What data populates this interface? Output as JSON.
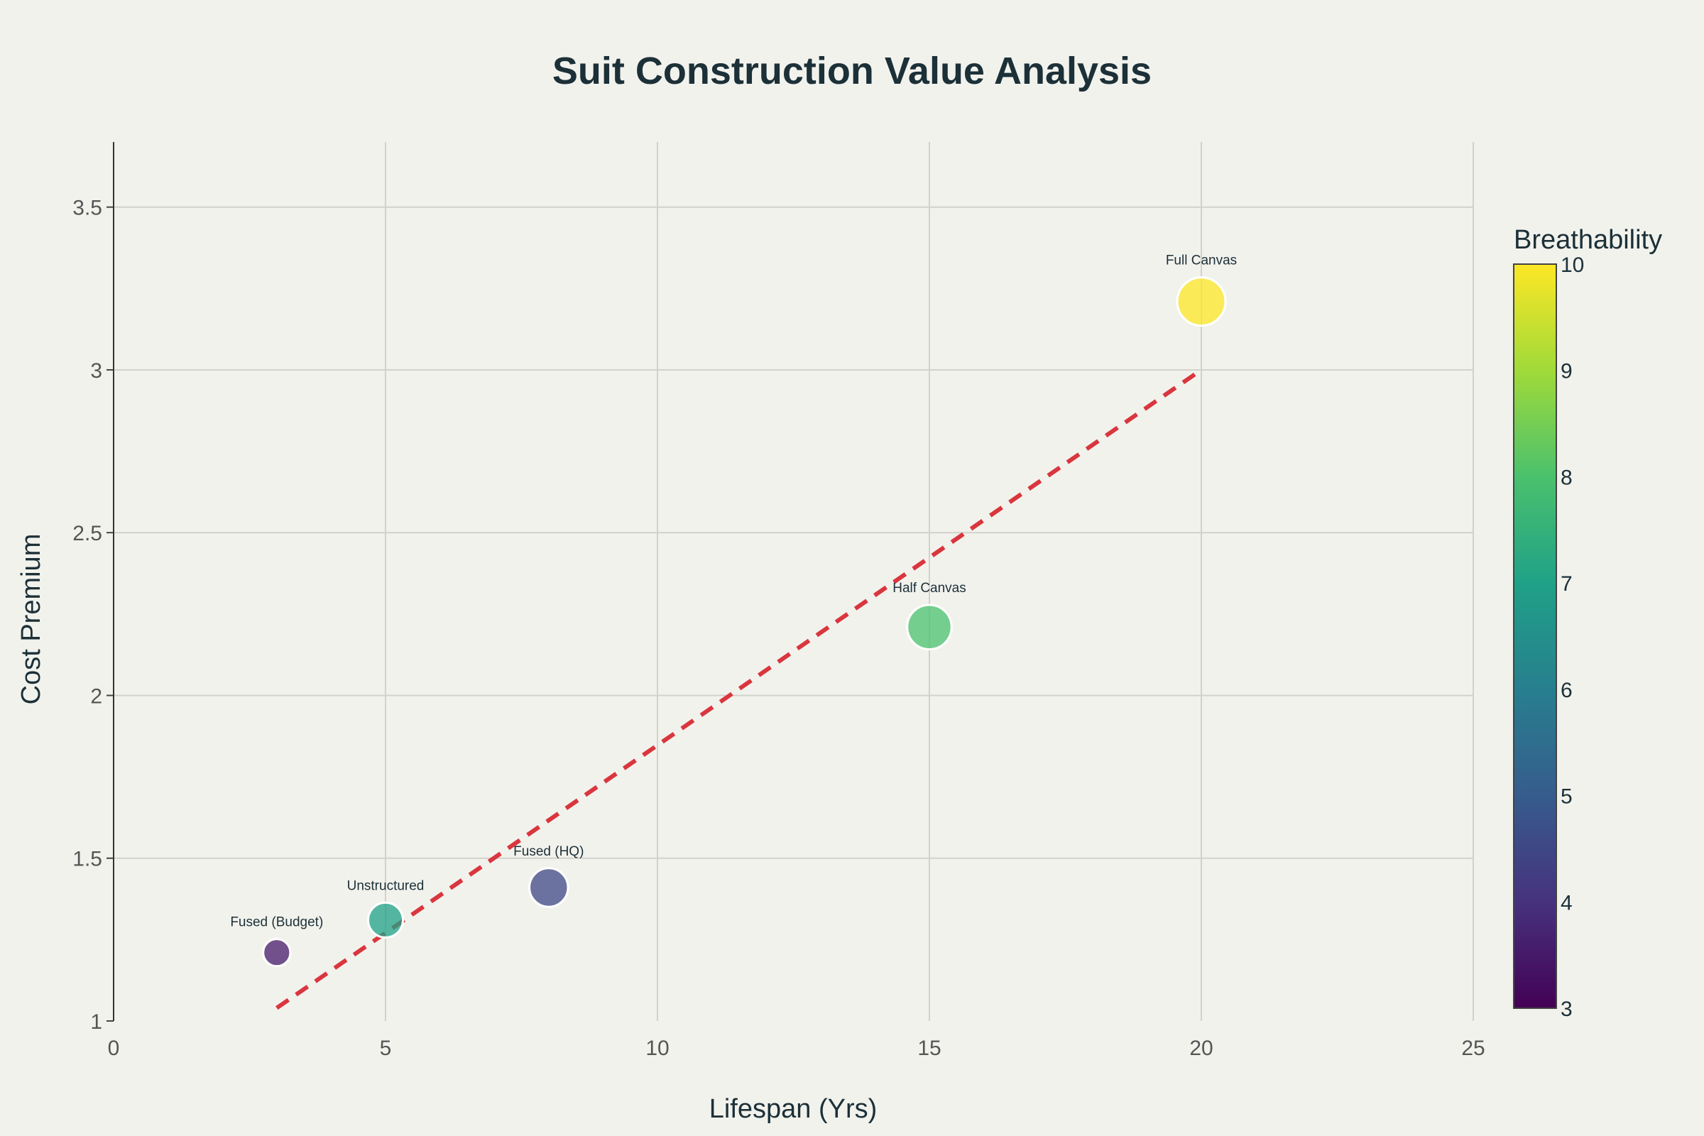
{
  "chart_data": {
    "type": "scatter",
    "title": "Suit Construction Value Analysis",
    "xlabel": "Lifespan (Yrs)",
    "ylabel": "Cost Premium",
    "xlim": [
      0,
      25
    ],
    "ylim": [
      1,
      3.7
    ],
    "xticks": [
      "0",
      "5",
      "10",
      "15",
      "20",
      "25"
    ],
    "yticks": [
      "1",
      "1.5",
      "2",
      "2.5",
      "3",
      "3.5"
    ],
    "grid": true,
    "points": [
      {
        "label": "Fused (Budget)",
        "x": 3,
        "y": 1.21,
        "breathability": 3.5,
        "size": 3
      },
      {
        "label": "Unstructured",
        "x": 5,
        "y": 1.31,
        "breathability": 7,
        "size": 5
      },
      {
        "label": "Fused (HQ)",
        "x": 8,
        "y": 1.41,
        "breathability": 4.5,
        "size": 6
      },
      {
        "label": "Half Canvas",
        "x": 15,
        "y": 2.21,
        "breathability": 8,
        "size": 7.5
      },
      {
        "label": "Full Canvas",
        "x": 20,
        "y": 3.21,
        "breathability": 10,
        "size": 8.5
      }
    ],
    "trendline": {
      "style": "dashed",
      "color": "#d9363e",
      "x": [
        3,
        20
      ],
      "y": [
        1.04,
        3.0
      ]
    },
    "colorbar": {
      "title": "Breathability",
      "min": 3,
      "max": 10,
      "ticks": [
        "3",
        "4",
        "5",
        "6",
        "7",
        "8",
        "9",
        "10"
      ],
      "colorscale": "viridis"
    }
  }
}
